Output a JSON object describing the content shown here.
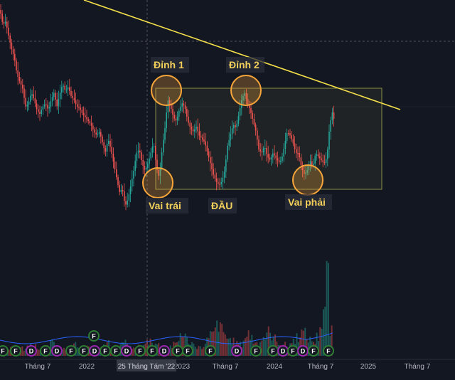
{
  "chart_data": {
    "type": "candlestick",
    "x_ticks": [
      "Tháng 7",
      "2022",
      "2023",
      "Tháng 7",
      "2024",
      "Tháng 7",
      "2025",
      "Tháng 7"
    ],
    "crosshair_label": "25 Tháng Tám '22",
    "annotations": {
      "peak1": "Đỉnh 1",
      "peak2": "Đỉnh 2",
      "left_shoulder": "Vai trái",
      "head": "ĐẦU",
      "right_shoulder": "Vai phải"
    },
    "price_path": [
      [
        0,
        14
      ],
      [
        4,
        35
      ],
      [
        8,
        30
      ],
      [
        12,
        50
      ],
      [
        16,
        68
      ],
      [
        20,
        80
      ],
      [
        24,
        105
      ],
      [
        28,
        115
      ],
      [
        32,
        125
      ],
      [
        36,
        150
      ],
      [
        40,
        145
      ],
      [
        44,
        130
      ],
      [
        48,
        140
      ],
      [
        52,
        155
      ],
      [
        56,
        160
      ],
      [
        60,
        150
      ],
      [
        64,
        145
      ],
      [
        68,
        155
      ],
      [
        72,
        140
      ],
      [
        76,
        130
      ],
      [
        80,
        150
      ],
      [
        84,
        132
      ],
      [
        88,
        118
      ],
      [
        92,
        128
      ],
      [
        96,
        122
      ],
      [
        100,
        135
      ],
      [
        104,
        140
      ],
      [
        108,
        150
      ],
      [
        112,
        152
      ],
      [
        116,
        160
      ],
      [
        120,
        165
      ],
      [
        124,
        170
      ],
      [
        128,
        175
      ],
      [
        132,
        185
      ],
      [
        136,
        190
      ],
      [
        140,
        185
      ],
      [
        144,
        200
      ],
      [
        148,
        215
      ],
      [
        152,
        195
      ],
      [
        156,
        210
      ],
      [
        160,
        230
      ],
      [
        164,
        250
      ],
      [
        168,
        270
      ],
      [
        172,
        265
      ],
      [
        176,
        290
      ],
      [
        180,
        280
      ],
      [
        184,
        260
      ],
      [
        188,
        240
      ],
      [
        192,
        215
      ],
      [
        196,
        210
      ],
      [
        200,
        230
      ],
      [
        204,
        240
      ],
      [
        208,
        230
      ],
      [
        212,
        215
      ],
      [
        216,
        200
      ],
      [
        220,
        235
      ],
      [
        224,
        250
      ],
      [
        228,
        210
      ],
      [
        232,
        180
      ],
      [
        236,
        140
      ],
      [
        240,
        150
      ],
      [
        244,
        165
      ],
      [
        248,
        170
      ],
      [
        252,
        155
      ],
      [
        256,
        145
      ],
      [
        260,
        150
      ],
      [
        264,
        170
      ],
      [
        268,
        180
      ],
      [
        272,
        185
      ],
      [
        276,
        178
      ],
      [
        280,
        190
      ],
      [
        284,
        195
      ],
      [
        288,
        200
      ],
      [
        292,
        215
      ],
      [
        296,
        230
      ],
      [
        300,
        245
      ],
      [
        304,
        255
      ],
      [
        308,
        260
      ],
      [
        312,
        255
      ],
      [
        316,
        240
      ],
      [
        320,
        205
      ],
      [
        324,
        190
      ],
      [
        328,
        175
      ],
      [
        332,
        180
      ],
      [
        336,
        160
      ],
      [
        340,
        140
      ],
      [
        344,
        130
      ],
      [
        348,
        145
      ],
      [
        352,
        155
      ],
      [
        356,
        170
      ],
      [
        360,
        185
      ],
      [
        364,
        210
      ],
      [
        368,
        215
      ],
      [
        372,
        205
      ],
      [
        376,
        220
      ],
      [
        380,
        225
      ],
      [
        384,
        215
      ],
      [
        388,
        222
      ],
      [
        392,
        228
      ],
      [
        396,
        225
      ],
      [
        400,
        205
      ],
      [
        404,
        185
      ],
      [
        408,
        190
      ],
      [
        412,
        200
      ],
      [
        416,
        215
      ],
      [
        420,
        215
      ],
      [
        424,
        235
      ],
      [
        428,
        245
      ],
      [
        432,
        240
      ],
      [
        436,
        225
      ],
      [
        440,
        235
      ],
      [
        444,
        215
      ],
      [
        448,
        220
      ],
      [
        452,
        225
      ],
      [
        456,
        230
      ],
      [
        460,
        220
      ],
      [
        462,
        195
      ],
      [
        464,
        175
      ],
      [
        466,
        165
      ],
      [
        468,
        155
      ],
      [
        470,
        170
      ],
      [
        472,
        175
      ]
    ],
    "volume": [
      6,
      8,
      10,
      12,
      9,
      14,
      10,
      8,
      12,
      18,
      14,
      10,
      8,
      9,
      12,
      20,
      14,
      10,
      9,
      8,
      10,
      12,
      15,
      9,
      8,
      10,
      14,
      12,
      9,
      10,
      8,
      12,
      16,
      10,
      9,
      11,
      14,
      18,
      12,
      10,
      9,
      12,
      10,
      14,
      18,
      20,
      16,
      14,
      12,
      10,
      9,
      12,
      14,
      18,
      30,
      24,
      20,
      16,
      14,
      12,
      10,
      14,
      20,
      26,
      30,
      40,
      34,
      28,
      22,
      20,
      18,
      16,
      14,
      22,
      28,
      24,
      18,
      16,
      20,
      24,
      30,
      26,
      22,
      18,
      16,
      14,
      12,
      16,
      20,
      24,
      30,
      28,
      22,
      20,
      18,
      24,
      40,
      60,
      100,
      30
    ],
    "event_markers": [
      {
        "label": "F",
        "color": "#2e7d32"
      },
      {
        "label": "F",
        "color": "#2e7d32"
      },
      {
        "label": "D",
        "color": "#9c27b0"
      },
      {
        "label": "F",
        "color": "#2e7d32"
      },
      {
        "label": "D",
        "color": "#9c27b0"
      },
      {
        "label": "F",
        "color": "#2e7d32"
      },
      {
        "label": "F",
        "color": "#2e7d32"
      },
      {
        "label": "D",
        "color": "#9c27b0"
      },
      {
        "label": "F",
        "color": "#2e7d32"
      },
      {
        "label": "F",
        "color": "#2e7d32"
      },
      {
        "label": "D",
        "color": "#9c27b0"
      },
      {
        "label": "F",
        "color": "#2e7d32"
      },
      {
        "label": "F",
        "color": "#2e7d32"
      },
      {
        "label": "D",
        "color": "#9c27b0"
      },
      {
        "label": "F",
        "color": "#2e7d32"
      },
      {
        "label": "F",
        "color": "#2e7d32"
      },
      {
        "label": "F",
        "color": "#2e7d32"
      },
      {
        "label": "D",
        "color": "#9c27b0"
      },
      {
        "label": "F",
        "color": "#2e7d32"
      },
      {
        "label": "F",
        "color": "#2e7d32"
      },
      {
        "label": "D",
        "color": "#9c27b0"
      },
      {
        "label": "F",
        "color": "#2e7d32"
      },
      {
        "label": "D",
        "color": "#9c27b0"
      },
      {
        "label": "F",
        "color": "#2e7d32"
      },
      {
        "label": "F",
        "color": "#2e7d32"
      }
    ],
    "colors": {
      "up": "#26a69a",
      "down": "#ef5350",
      "trendline": "#f5e04a",
      "annotation": "#f2cf5b",
      "circle_stroke": "#f7a53a",
      "circle_fill": "#f7a53a",
      "range_box": "#8a8f45",
      "background": "#131722"
    }
  }
}
